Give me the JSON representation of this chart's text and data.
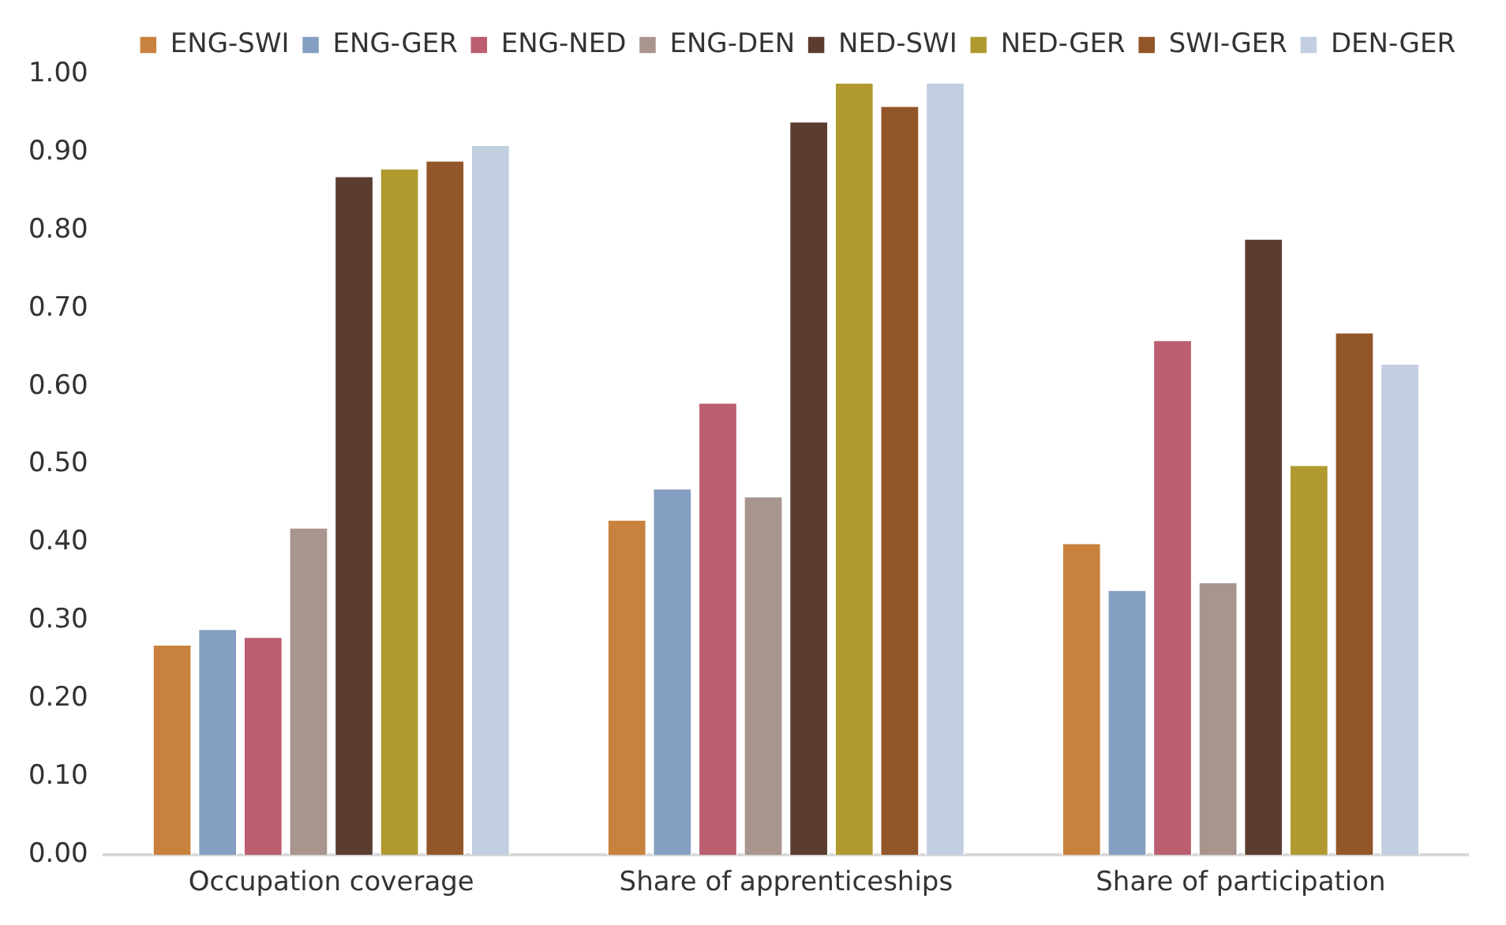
{
  "chart_data": {
    "type": "bar",
    "categories": [
      "Occupation coverage",
      "Share of apprenticeships",
      "Share of participation"
    ],
    "series": [
      {
        "name": "ENG-SWI",
        "color": "#c8823e",
        "values": [
          0.27,
          0.43,
          0.4
        ]
      },
      {
        "name": "ENG-GER",
        "color": "#849fc2",
        "values": [
          0.29,
          0.47,
          0.34
        ]
      },
      {
        "name": "ENG-NED",
        "color": "#bb5e6f",
        "values": [
          0.28,
          0.58,
          0.66
        ]
      },
      {
        "name": "ENG-DEN",
        "color": "#a8958d",
        "values": [
          0.42,
          0.46,
          0.35
        ]
      },
      {
        "name": "NED-SWI",
        "color": "#5b3d30",
        "values": [
          0.87,
          0.94,
          0.79
        ]
      },
      {
        "name": "NED-GER",
        "color": "#b09a30",
        "values": [
          0.88,
          0.99,
          0.5
        ]
      },
      {
        "name": "SWI-GER",
        "color": "#935629",
        "values": [
          0.89,
          0.96,
          0.67
        ]
      },
      {
        "name": "DEN-GER",
        "color": "#c2cfe0",
        "values": [
          0.91,
          0.99,
          0.63
        ]
      }
    ],
    "ylim": [
      0,
      1
    ],
    "yticks": [
      {
        "value": 0,
        "label": "0.00"
      },
      {
        "value": 0.1,
        "label": "0.10"
      },
      {
        "value": 0.2,
        "label": "0.20"
      },
      {
        "value": 0.3,
        "label": "0.30"
      },
      {
        "value": 0.4,
        "label": "0.40"
      },
      {
        "value": 0.5,
        "label": "0.50"
      },
      {
        "value": 0.6,
        "label": "0.60"
      },
      {
        "value": 0.7,
        "label": "0.70"
      },
      {
        "value": 0.8,
        "label": "0.80"
      },
      {
        "value": 0.9,
        "label": "0.90"
      },
      {
        "value": 1,
        "label": "1.00"
      }
    ],
    "grid": false,
    "legend": "top right"
  }
}
